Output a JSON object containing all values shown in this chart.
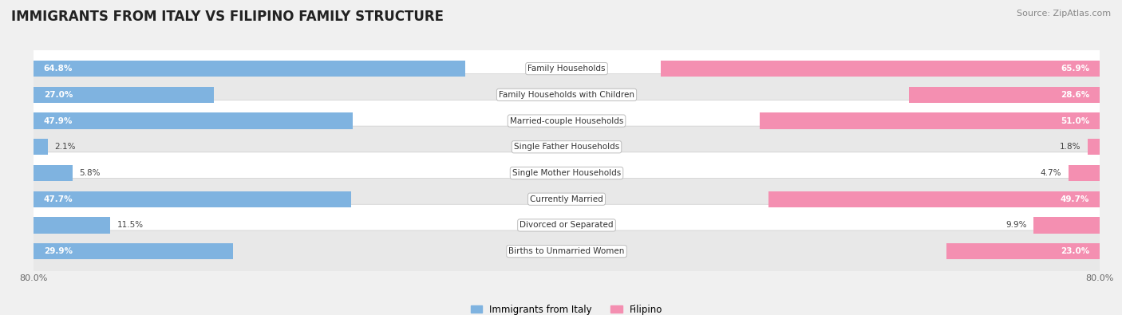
{
  "title": "IMMIGRANTS FROM ITALY VS FILIPINO FAMILY STRUCTURE",
  "source": "Source: ZipAtlas.com",
  "categories": [
    "Family Households",
    "Family Households with Children",
    "Married-couple Households",
    "Single Father Households",
    "Single Mother Households",
    "Currently Married",
    "Divorced or Separated",
    "Births to Unmarried Women"
  ],
  "italy_values": [
    64.8,
    27.0,
    47.9,
    2.1,
    5.8,
    47.7,
    11.5,
    29.9
  ],
  "filipino_values": [
    65.9,
    28.6,
    51.0,
    1.8,
    4.7,
    49.7,
    9.9,
    23.0
  ],
  "italy_color": "#7fb3e0",
  "filipino_color": "#f48fb1",
  "axis_max": 80.0,
  "legend_italy": "Immigrants from Italy",
  "legend_filipino": "Filipino",
  "background_color": "#f0f0f0",
  "row_even_color": "#ffffff",
  "row_odd_color": "#e8e8e8",
  "label_fontsize": 8,
  "title_fontsize": 12,
  "bar_height": 0.62
}
